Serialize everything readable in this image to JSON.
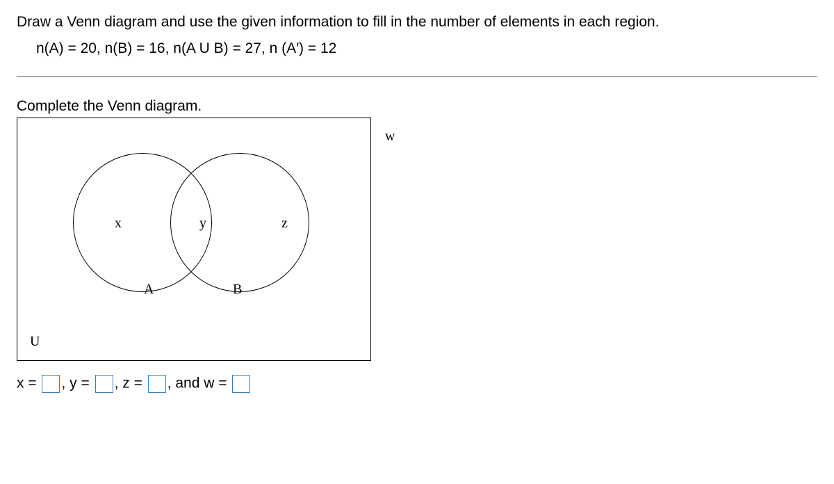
{
  "question": {
    "line1": "Draw a Venn diagram and use the given information to fill in the number of elements in each region.",
    "given": "n(A) = 20, n(B) = 16, n(A U B) = 27, n (A′) = 12"
  },
  "prompt": "Complete the Venn diagram.",
  "venn": {
    "region_labels": {
      "x": "x",
      "y": "y",
      "z": "z"
    },
    "set_labels": {
      "A": "A",
      "B": "B"
    },
    "universe_label": "U",
    "outside_label": "w",
    "circle_stroke": "#000000",
    "box_stroke": "#000000",
    "label_font": "Times New Roman",
    "label_fontsize": 20
  },
  "answer": {
    "parts": [
      {
        "prefix": "x =",
        "value": ""
      },
      {
        "prefix": ", y =",
        "value": ""
      },
      {
        "prefix": ", z =",
        "value": ""
      },
      {
        "prefix": ", and w =",
        "value": ""
      }
    ],
    "input_box_color": "#3a7fb5"
  }
}
